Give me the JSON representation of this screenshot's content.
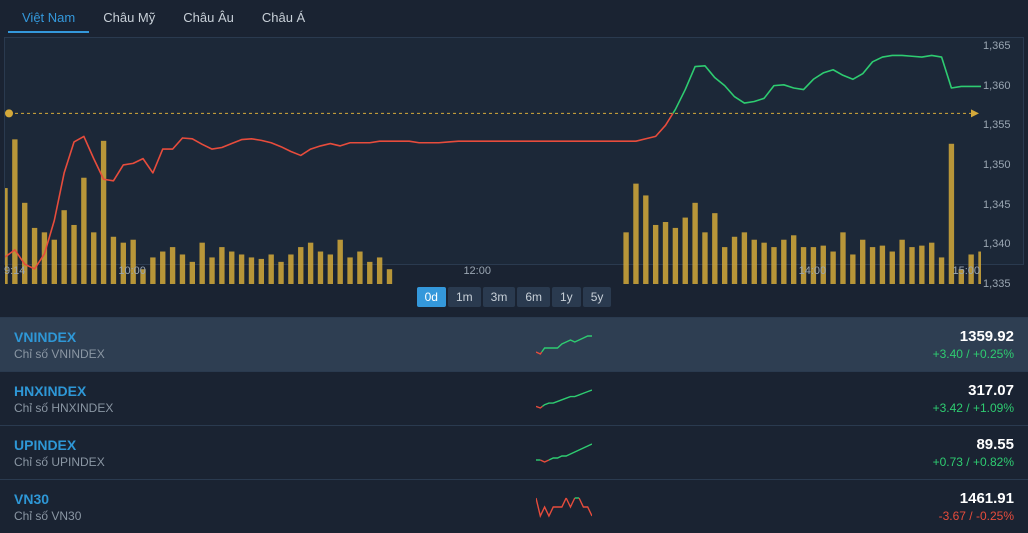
{
  "tabs": [
    {
      "label": "Việt Nam",
      "active": true
    },
    {
      "label": "Châu Mỹ",
      "active": false
    },
    {
      "label": "Châu Âu",
      "active": false
    },
    {
      "label": "Châu Á",
      "active": false
    }
  ],
  "range_buttons": [
    {
      "label": "0d",
      "active": true
    },
    {
      "label": "1m",
      "active": false
    },
    {
      "label": "3m",
      "active": false
    },
    {
      "label": "6m",
      "active": false
    },
    {
      "label": "1y",
      "active": false
    },
    {
      "label": "5y",
      "active": false
    }
  ],
  "chart": {
    "type": "line+volume",
    "background_color": "#1c2838",
    "grid_color": "#2a3a4f",
    "ylim": [
      1335,
      1366
    ],
    "ytick_step": 5,
    "yticks": [
      1335,
      1340,
      1345,
      1350,
      1355,
      1360,
      1365
    ],
    "y_label_color": "#9aa6b2",
    "y_label_fontsize": 11,
    "reference_line": {
      "value": 1356.5,
      "color": "#d4a93a",
      "dash": "3 3",
      "width": 1
    },
    "line_width": 1.6,
    "color_up": "#2ecc71",
    "color_down": "#e74c3c",
    "line_points": [
      {
        "t": 0,
        "v": 1338.4
      },
      {
        "t": 1,
        "v": 1339.3
      },
      {
        "t": 2,
        "v": 1337.5
      },
      {
        "t": 3,
        "v": 1336.9
      },
      {
        "t": 4,
        "v": 1338.8
      },
      {
        "t": 5,
        "v": 1343.0
      },
      {
        "t": 6,
        "v": 1349.0
      },
      {
        "t": 7,
        "v": 1352.9
      },
      {
        "t": 8,
        "v": 1353.6
      },
      {
        "t": 9,
        "v": 1350.8
      },
      {
        "t": 10,
        "v": 1348.2
      },
      {
        "t": 11,
        "v": 1348.0
      },
      {
        "t": 12,
        "v": 1350.0
      },
      {
        "t": 13,
        "v": 1350.2
      },
      {
        "t": 14,
        "v": 1350.8
      },
      {
        "t": 15,
        "v": 1349.0
      },
      {
        "t": 16,
        "v": 1352.0
      },
      {
        "t": 17,
        "v": 1352.0
      },
      {
        "t": 18,
        "v": 1353.4
      },
      {
        "t": 19,
        "v": 1353.3
      },
      {
        "t": 20,
        "v": 1352.6
      },
      {
        "t": 21,
        "v": 1352.0
      },
      {
        "t": 22,
        "v": 1352.2
      },
      {
        "t": 23,
        "v": 1352.7
      },
      {
        "t": 24,
        "v": 1353.2
      },
      {
        "t": 25,
        "v": 1353.3
      },
      {
        "t": 26,
        "v": 1353.1
      },
      {
        "t": 27,
        "v": 1352.8
      },
      {
        "t": 28,
        "v": 1352.3
      },
      {
        "t": 29,
        "v": 1351.7
      },
      {
        "t": 30,
        "v": 1351.2
      },
      {
        "t": 31,
        "v": 1352.0
      },
      {
        "t": 32,
        "v": 1352.4
      },
      {
        "t": 33,
        "v": 1352.7
      },
      {
        "t": 34,
        "v": 1352.4
      },
      {
        "t": 35,
        "v": 1352.8
      },
      {
        "t": 36,
        "v": 1352.8
      },
      {
        "t": 37,
        "v": 1352.8
      },
      {
        "t": 38,
        "v": 1353.0
      },
      {
        "t": 39,
        "v": 1353.0
      },
      {
        "t": 40,
        "v": 1353.0
      },
      {
        "t": 41,
        "v": 1353.0
      },
      {
        "t": 42,
        "v": 1352.8
      },
      {
        "t": 43,
        "v": 1352.8
      },
      {
        "t": 44,
        "v": 1352.8
      },
      {
        "t": 45,
        "v": 1352.9
      },
      {
        "t": 46,
        "v": 1353.0
      },
      {
        "t": 47,
        "v": 1353.0
      },
      {
        "t": 48,
        "v": 1353.0
      },
      {
        "t": 49,
        "v": 1353.0
      },
      {
        "t": 50,
        "v": 1353.0
      },
      {
        "t": 51,
        "v": 1353.0
      },
      {
        "t": 52,
        "v": 1353.0
      },
      {
        "t": 53,
        "v": 1353.0
      },
      {
        "t": 54,
        "v": 1353.0
      },
      {
        "t": 55,
        "v": 1353.0
      },
      {
        "t": 56,
        "v": 1353.0
      },
      {
        "t": 57,
        "v": 1353.0
      },
      {
        "t": 58,
        "v": 1353.0
      },
      {
        "t": 59,
        "v": 1353.0
      },
      {
        "t": 60,
        "v": 1353.0
      },
      {
        "t": 61,
        "v": 1353.0
      },
      {
        "t": 62,
        "v": 1353.0
      },
      {
        "t": 63,
        "v": 1353.0
      },
      {
        "t": 64,
        "v": 1353.0
      },
      {
        "t": 65,
        "v": 1353.3
      },
      {
        "t": 66,
        "v": 1353.6
      },
      {
        "t": 67,
        "v": 1355.0
      },
      {
        "t": 68,
        "v": 1357.0
      },
      {
        "t": 69,
        "v": 1359.5
      },
      {
        "t": 70,
        "v": 1362.4
      },
      {
        "t": 71,
        "v": 1362.5
      },
      {
        "t": 72,
        "v": 1361.0
      },
      {
        "t": 73,
        "v": 1360.0
      },
      {
        "t": 74,
        "v": 1358.6
      },
      {
        "t": 75,
        "v": 1357.8
      },
      {
        "t": 76,
        "v": 1358.0
      },
      {
        "t": 77,
        "v": 1358.4
      },
      {
        "t": 78,
        "v": 1360.0
      },
      {
        "t": 79,
        "v": 1360.1
      },
      {
        "t": 80,
        "v": 1359.7
      },
      {
        "t": 81,
        "v": 1359.5
      },
      {
        "t": 82,
        "v": 1360.8
      },
      {
        "t": 83,
        "v": 1361.6
      },
      {
        "t": 84,
        "v": 1362.0
      },
      {
        "t": 85,
        "v": 1361.3
      },
      {
        "t": 86,
        "v": 1360.8
      },
      {
        "t": 87,
        "v": 1361.5
      },
      {
        "t": 88,
        "v": 1363.0
      },
      {
        "t": 89,
        "v": 1363.6
      },
      {
        "t": 90,
        "v": 1363.8
      },
      {
        "t": 91,
        "v": 1363.8
      },
      {
        "t": 92,
        "v": 1363.7
      },
      {
        "t": 93,
        "v": 1363.6
      },
      {
        "t": 94,
        "v": 1363.8
      },
      {
        "t": 95,
        "v": 1363.6
      },
      {
        "t": 96,
        "v": 1359.7
      },
      {
        "t": 97,
        "v": 1359.9
      },
      {
        "t": 98,
        "v": 1359.9
      },
      {
        "t": 99,
        "v": 1359.9
      }
    ],
    "volume_color": "#d4a93a",
    "volume_max": 1.0,
    "volume_bars": [
      {
        "t": 0,
        "v": 0.65
      },
      {
        "t": 1,
        "v": 0.98
      },
      {
        "t": 2,
        "v": 0.55
      },
      {
        "t": 3,
        "v": 0.38
      },
      {
        "t": 4,
        "v": 0.35
      },
      {
        "t": 5,
        "v": 0.3
      },
      {
        "t": 6,
        "v": 0.5
      },
      {
        "t": 7,
        "v": 0.4
      },
      {
        "t": 8,
        "v": 0.72
      },
      {
        "t": 9,
        "v": 0.35
      },
      {
        "t": 10,
        "v": 0.97
      },
      {
        "t": 11,
        "v": 0.32
      },
      {
        "t": 12,
        "v": 0.28
      },
      {
        "t": 13,
        "v": 0.3
      },
      {
        "t": 14,
        "v": 0.1
      },
      {
        "t": 15,
        "v": 0.18
      },
      {
        "t": 16,
        "v": 0.22
      },
      {
        "t": 17,
        "v": 0.25
      },
      {
        "t": 18,
        "v": 0.2
      },
      {
        "t": 19,
        "v": 0.15
      },
      {
        "t": 20,
        "v": 0.28
      },
      {
        "t": 21,
        "v": 0.18
      },
      {
        "t": 22,
        "v": 0.25
      },
      {
        "t": 23,
        "v": 0.22
      },
      {
        "t": 24,
        "v": 0.2
      },
      {
        "t": 25,
        "v": 0.18
      },
      {
        "t": 26,
        "v": 0.17
      },
      {
        "t": 27,
        "v": 0.2
      },
      {
        "t": 28,
        "v": 0.15
      },
      {
        "t": 29,
        "v": 0.2
      },
      {
        "t": 30,
        "v": 0.25
      },
      {
        "t": 31,
        "v": 0.28
      },
      {
        "t": 32,
        "v": 0.22
      },
      {
        "t": 33,
        "v": 0.2
      },
      {
        "t": 34,
        "v": 0.3
      },
      {
        "t": 35,
        "v": 0.18
      },
      {
        "t": 36,
        "v": 0.22
      },
      {
        "t": 37,
        "v": 0.15
      },
      {
        "t": 38,
        "v": 0.18
      },
      {
        "t": 39,
        "v": 0.1
      },
      {
        "t": 40,
        "v": 0
      },
      {
        "t": 41,
        "v": 0
      },
      {
        "t": 42,
        "v": 0
      },
      {
        "t": 43,
        "v": 0
      },
      {
        "t": 44,
        "v": 0
      },
      {
        "t": 45,
        "v": 0
      },
      {
        "t": 46,
        "v": 0
      },
      {
        "t": 47,
        "v": 0
      },
      {
        "t": 48,
        "v": 0
      },
      {
        "t": 49,
        "v": 0
      },
      {
        "t": 50,
        "v": 0
      },
      {
        "t": 51,
        "v": 0
      },
      {
        "t": 52,
        "v": 0
      },
      {
        "t": 53,
        "v": 0
      },
      {
        "t": 54,
        "v": 0
      },
      {
        "t": 55,
        "v": 0
      },
      {
        "t": 56,
        "v": 0
      },
      {
        "t": 57,
        "v": 0
      },
      {
        "t": 58,
        "v": 0
      },
      {
        "t": 59,
        "v": 0
      },
      {
        "t": 60,
        "v": 0
      },
      {
        "t": 61,
        "v": 0
      },
      {
        "t": 62,
        "v": 0
      },
      {
        "t": 63,
        "v": 0.35
      },
      {
        "t": 64,
        "v": 0.68
      },
      {
        "t": 65,
        "v": 0.6
      },
      {
        "t": 66,
        "v": 0.4
      },
      {
        "t": 67,
        "v": 0.42
      },
      {
        "t": 68,
        "v": 0.38
      },
      {
        "t": 69,
        "v": 0.45
      },
      {
        "t": 70,
        "v": 0.55
      },
      {
        "t": 71,
        "v": 0.35
      },
      {
        "t": 72,
        "v": 0.48
      },
      {
        "t": 73,
        "v": 0.25
      },
      {
        "t": 74,
        "v": 0.32
      },
      {
        "t": 75,
        "v": 0.35
      },
      {
        "t": 76,
        "v": 0.3
      },
      {
        "t": 77,
        "v": 0.28
      },
      {
        "t": 78,
        "v": 0.25
      },
      {
        "t": 79,
        "v": 0.3
      },
      {
        "t": 80,
        "v": 0.33
      },
      {
        "t": 81,
        "v": 0.25
      },
      {
        "t": 82,
        "v": 0.25
      },
      {
        "t": 83,
        "v": 0.26
      },
      {
        "t": 84,
        "v": 0.22
      },
      {
        "t": 85,
        "v": 0.35
      },
      {
        "t": 86,
        "v": 0.2
      },
      {
        "t": 87,
        "v": 0.3
      },
      {
        "t": 88,
        "v": 0.25
      },
      {
        "t": 89,
        "v": 0.26
      },
      {
        "t": 90,
        "v": 0.22
      },
      {
        "t": 91,
        "v": 0.3
      },
      {
        "t": 92,
        "v": 0.25
      },
      {
        "t": 93,
        "v": 0.26
      },
      {
        "t": 94,
        "v": 0.28
      },
      {
        "t": 95,
        "v": 0.18
      },
      {
        "t": 96,
        "v": 0.95
      },
      {
        "t": 97,
        "v": 0.1
      },
      {
        "t": 98,
        "v": 0.2
      },
      {
        "t": 99,
        "v": 0.22
      }
    ],
    "x_range": [
      0,
      99
    ],
    "x_ticks": [
      {
        "t": 0,
        "label": "9:14"
      },
      {
        "t": 13,
        "label": "10:00"
      },
      {
        "t": 48,
        "label": "12:00"
      },
      {
        "t": 82,
        "label": "14:00"
      },
      {
        "t": 99,
        "label": "15:00"
      }
    ]
  },
  "indices": [
    {
      "symbol": "VNINDEX",
      "desc": "Chỉ số VNINDEX",
      "price": "1359.92",
      "change": "+3.40 / +0.25%",
      "dir": "up",
      "selected": true,
      "spark": [
        0,
        -1,
        2,
        2,
        2,
        2,
        4,
        5,
        6,
        5,
        6,
        7,
        8,
        8
      ]
    },
    {
      "symbol": "HNXINDEX",
      "desc": "Chỉ số HNXINDEX",
      "price": "317.07",
      "change": "+3.42 / +1.09%",
      "dir": "up",
      "selected": false,
      "spark": [
        0,
        -1,
        1,
        2,
        2,
        3,
        4,
        5,
        6,
        6,
        7,
        8,
        9,
        10
      ]
    },
    {
      "symbol": "UPINDEX",
      "desc": "Chỉ số UPINDEX",
      "price": "89.55",
      "change": "+0.73 / +0.82%",
      "dir": "up",
      "selected": false,
      "spark": [
        0,
        0,
        -1,
        0,
        1,
        1,
        2,
        2,
        3,
        4,
        5,
        6,
        7,
        8
      ]
    },
    {
      "symbol": "VN30",
      "desc": "Chỉ số VN30",
      "price": "1461.91",
      "change": "-3.67 / -0.25%",
      "dir": "down",
      "selected": false,
      "spark": [
        0,
        -2,
        -1,
        -2,
        -1,
        -1,
        -1,
        0,
        -1,
        0,
        0,
        -1,
        -1,
        -2
      ]
    }
  ],
  "colors": {
    "bg": "#1a2332",
    "chart_bg": "#1c2838",
    "border": "#2a3a4f",
    "accent": "#3498db",
    "text": "#c8d0d8",
    "muted": "#9aa6b2",
    "up": "#2ecc71",
    "down": "#e74c3c",
    "volume": "#d4a93a"
  }
}
